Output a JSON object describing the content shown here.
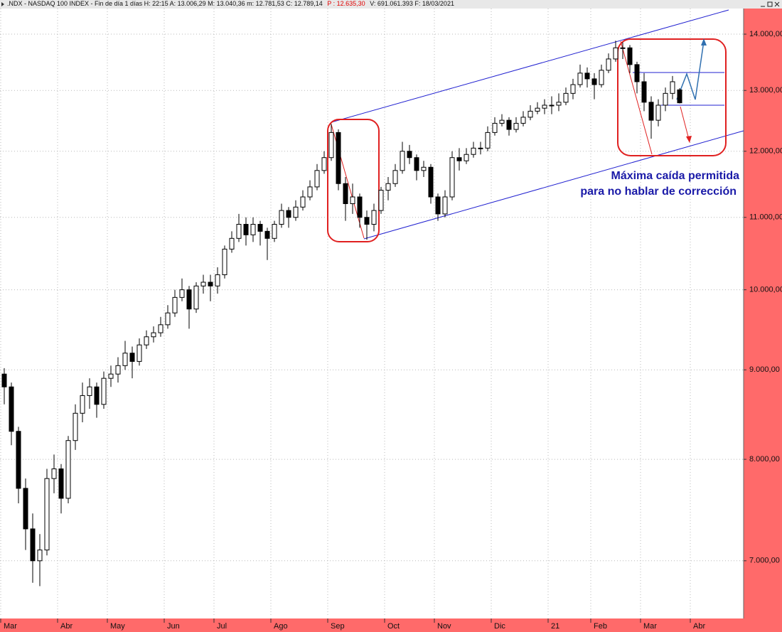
{
  "header": {
    "parts": [
      ".NDX - NASDAQ 100 INDEX - Fin de día 1 días H: 22:15 A: 13.006,29 M: 13.040,36 m: 12.781,53 C: 12.789,14",
      "P : 12.635,30",
      "V: 691.061.393 F: 18/03/2021"
    ]
  },
  "chart_data": {
    "type": "candlestick",
    "log_scale": true,
    "grid": true,
    "annotations": [
      "Máxima caída permitida",
      "para no hablar de corrección"
    ],
    "categories": [
      "Mar",
      null,
      null,
      null,
      null,
      null,
      null,
      null,
      "Abr",
      null,
      null,
      null,
      null,
      null,
      null,
      "May",
      null,
      null,
      null,
      null,
      null,
      null,
      null,
      "Jun",
      null,
      null,
      null,
      null,
      null,
      null,
      "Jul",
      null,
      null,
      null,
      null,
      null,
      null,
      null,
      "Ago",
      null,
      null,
      null,
      null,
      null,
      null,
      null,
      "Sep",
      null,
      null,
      null,
      null,
      null,
      null,
      null,
      "Oct",
      null,
      null,
      null,
      null,
      null,
      null,
      "Nov",
      null,
      null,
      null,
      null,
      null,
      null,
      null,
      "Dic",
      null,
      null,
      null,
      null,
      null,
      null,
      null,
      "21",
      null,
      null,
      null,
      null,
      null,
      "Feb",
      null,
      null,
      null,
      null,
      null,
      null,
      "Mar",
      null,
      null,
      null,
      null,
      null,
      null,
      "Abr"
    ],
    "open": [
      8950,
      8800,
      8300,
      7700,
      7300,
      7000,
      7100,
      7800,
      7900,
      7600,
      8200,
      8500,
      8700,
      8800,
      8600,
      8900,
      8950,
      9050,
      9200,
      9100,
      9300,
      9400,
      9450,
      9550,
      9700,
      9900,
      10000,
      9750,
      10050,
      10100,
      10050,
      10200,
      10550,
      10700,
      10900,
      10750,
      10900,
      10800,
      10700,
      10900,
      11100,
      11000,
      11150,
      11300,
      11450,
      11700,
      11900,
      12300,
      11500,
      11200,
      11300,
      11000,
      10900,
      11100,
      11400,
      11500,
      11700,
      12000,
      11900,
      11700,
      11750,
      11300,
      11050,
      11300,
      11900,
      11850,
      11950,
      12050,
      12050,
      12300,
      12450,
      12500,
      12350,
      12450,
      12550,
      12650,
      12700,
      12750,
      12750,
      12800,
      12950,
      13100,
      13300,
      13200,
      13100,
      13350,
      13550,
      13750,
      13750,
      13450,
      13150,
      12800,
      12500,
      12750,
      12950,
      13010,
      null,
      null
    ],
    "high": [
      9020,
      8850,
      8350,
      7800,
      7450,
      7250,
      7900,
      8050,
      7950,
      8250,
      8600,
      8850,
      8900,
      8850,
      8980,
      9050,
      9150,
      9350,
      9280,
      9380,
      9480,
      9530,
      9650,
      9800,
      10000,
      10150,
      10050,
      10100,
      10200,
      10200,
      10300,
      10600,
      10800,
      11050,
      11000,
      11000,
      10950,
      10850,
      10950,
      11200,
      11150,
      11250,
      11400,
      11550,
      11800,
      12000,
      12440,
      12350,
      11600,
      11500,
      11350,
      11100,
      11200,
      11450,
      11600,
      11800,
      12150,
      12100,
      11950,
      11850,
      11800,
      11350,
      11400,
      12000,
      12050,
      12050,
      12150,
      12150,
      12400,
      12550,
      12600,
      12550,
      12550,
      12650,
      12750,
      12800,
      12850,
      12900,
      12950,
      13050,
      13200,
      13450,
      13400,
      13300,
      13450,
      13650,
      13880,
      13850,
      13800,
      13500,
      13300,
      12900,
      12850,
      13050,
      13250,
      13040,
      null,
      null
    ],
    "low": [
      8600,
      8150,
      7550,
      7100,
      6800,
      6770,
      7050,
      7650,
      7450,
      7550,
      8100,
      8400,
      8550,
      8450,
      8550,
      8800,
      8850,
      9000,
      8900,
      9050,
      9250,
      9330,
      9400,
      9500,
      9650,
      9850,
      9500,
      9700,
      9950,
      9850,
      9950,
      10150,
      10500,
      10650,
      10600,
      10650,
      10600,
      10400,
      10650,
      10850,
      10850,
      10950,
      11100,
      11250,
      11400,
      11650,
      11850,
      11400,
      10950,
      11050,
      10850,
      10680,
      10800,
      11050,
      11250,
      11450,
      11650,
      11800,
      11550,
      11600,
      11200,
      10950,
      11000,
      11250,
      11700,
      11800,
      11900,
      11950,
      12000,
      12250,
      12400,
      12250,
      12300,
      12400,
      12500,
      12600,
      12600,
      12600,
      12650,
      12750,
      12850,
      13050,
      13050,
      12850,
      13050,
      13300,
      13500,
      13550,
      13300,
      12950,
      12650,
      12200,
      12400,
      12650,
      12850,
      12780,
      null,
      null
    ],
    "close": [
      8800,
      8300,
      7700,
      7300,
      7000,
      7100,
      7800,
      7900,
      7600,
      8200,
      8500,
      8700,
      8800,
      8600,
      8900,
      8950,
      9050,
      9200,
      9100,
      9300,
      9400,
      9450,
      9550,
      9700,
      9900,
      10000,
      9750,
      10050,
      10100,
      10050,
      10200,
      10550,
      10700,
      10900,
      10750,
      10900,
      10800,
      10700,
      10900,
      11100,
      11000,
      11150,
      11300,
      11450,
      11700,
      11900,
      12300,
      11500,
      11200,
      11300,
      11000,
      10900,
      11100,
      11400,
      11500,
      11700,
      12000,
      11900,
      11700,
      11750,
      11300,
      11050,
      11300,
      11900,
      11850,
      11950,
      12050,
      12050,
      12300,
      12450,
      12500,
      12350,
      12450,
      12550,
      12650,
      12700,
      12750,
      12750,
      12800,
      12950,
      13100,
      13300,
      13200,
      13100,
      13350,
      13550,
      13750,
      13750,
      13450,
      13150,
      12800,
      12500,
      12750,
      12950,
      13150,
      12790,
      null,
      null
    ],
    "ylim": [
      6500,
      14480
    ],
    "yticks": [
      {
        "value": 7000,
        "label": "7.000,00"
      },
      {
        "value": 8000,
        "label": "8.000,00"
      },
      {
        "value": 9000,
        "label": "9.000,00"
      },
      {
        "value": 10000,
        "label": "10.000,00"
      },
      {
        "value": 11000,
        "label": "11.000,00"
      },
      {
        "value": 12000,
        "label": "12.000,00"
      },
      {
        "value": 13000,
        "label": "13.000,00"
      },
      {
        "value": 14000,
        "label": "14.000,00"
      }
    ]
  }
}
